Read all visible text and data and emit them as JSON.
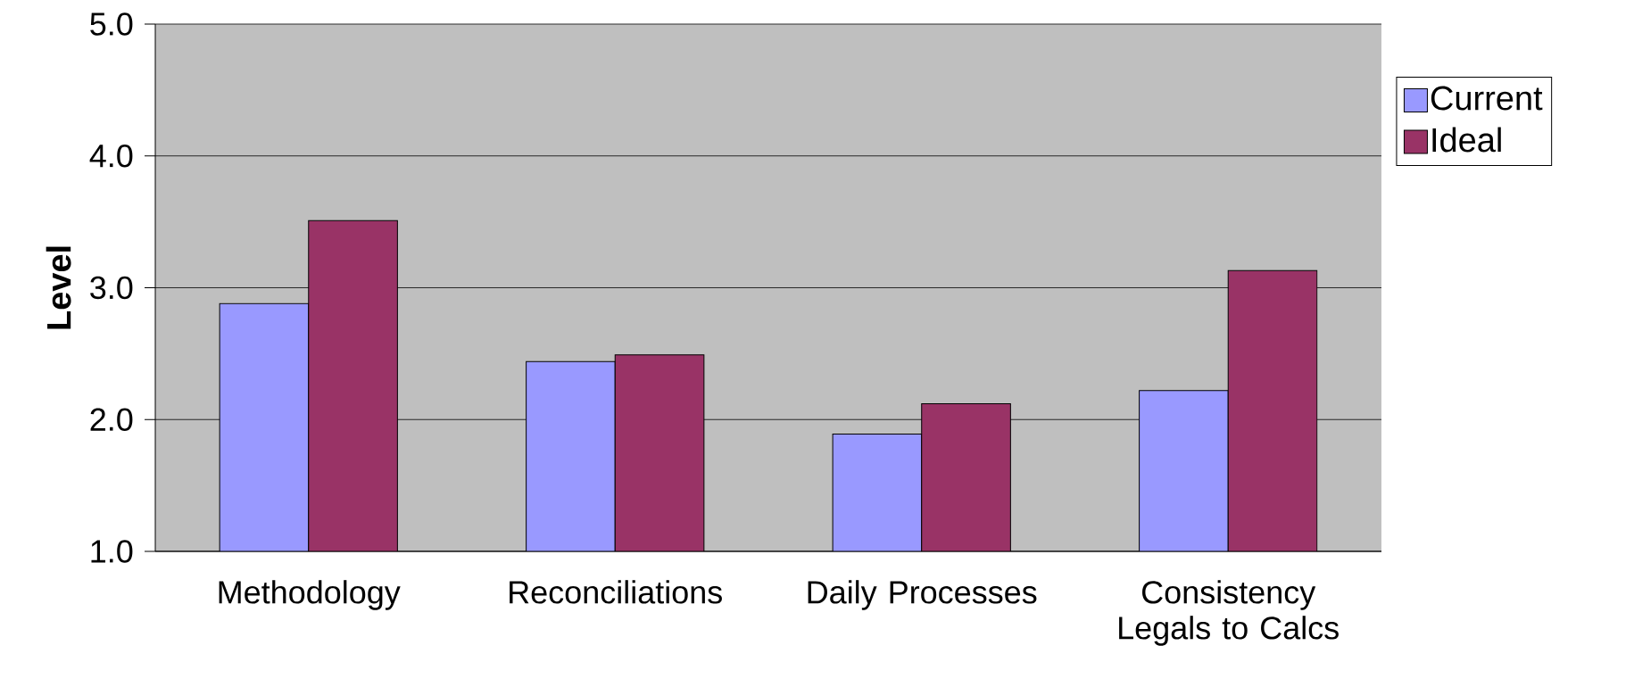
{
  "chart_data": {
    "type": "bar",
    "ylabel": "Level",
    "categories": [
      "Methodology",
      "Reconciliations",
      "Daily Processes",
      "Consistency Legals to Calcs"
    ],
    "series": [
      {
        "name": "Current",
        "color": "#9999ff",
        "values": [
          2.88,
          2.44,
          1.89,
          2.22
        ]
      },
      {
        "name": "Ideal",
        "color": "#993366",
        "values": [
          3.51,
          2.49,
          2.12,
          3.13
        ]
      }
    ],
    "ylim": [
      1,
      5
    ],
    "yticks": [
      {
        "value": 1,
        "label": "1.0"
      },
      {
        "value": 2,
        "label": "2.0"
      },
      {
        "value": 3,
        "label": "3.0"
      },
      {
        "value": 4,
        "label": "4.0"
      },
      {
        "value": 5,
        "label": "5.0"
      }
    ],
    "grid": "y",
    "legend": "right"
  }
}
